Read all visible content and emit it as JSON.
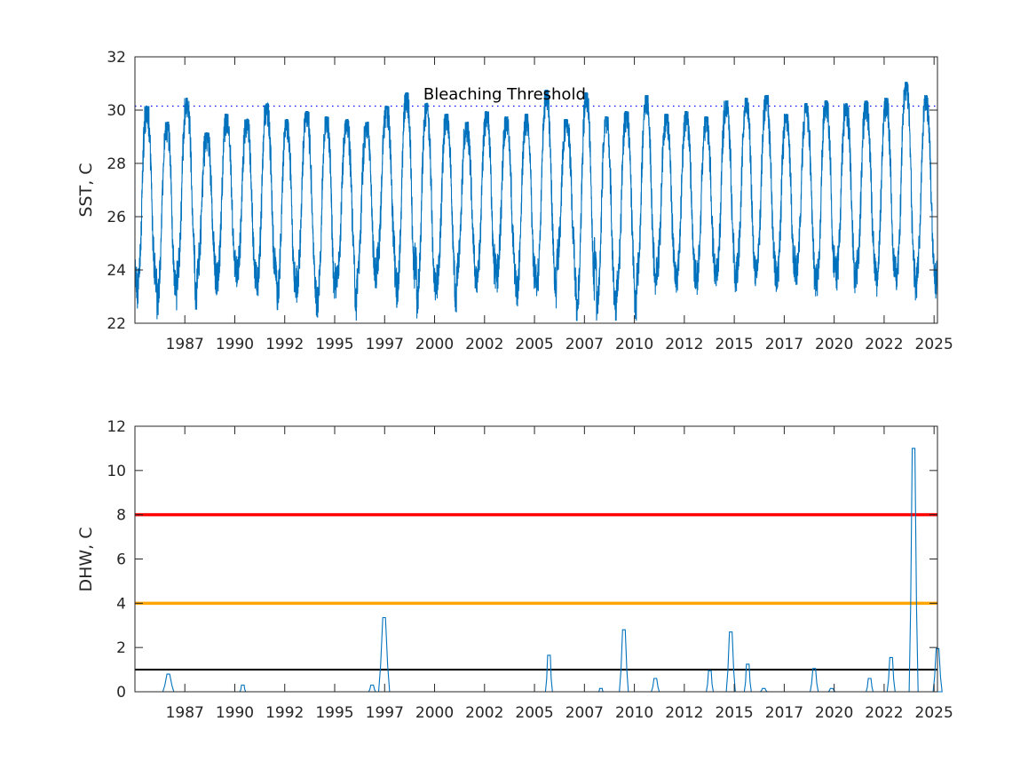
{
  "chart_data": [
    {
      "type": "line",
      "ylabel": "SST, C",
      "xlabel": "",
      "title": "",
      "xlim": [
        "1985-01-01",
        "2025-03-01"
      ],
      "ylim": [
        22,
        32
      ],
      "yticks": [
        22,
        24,
        26,
        28,
        30,
        32
      ],
      "xtick_labels": [
        "1987",
        "1990",
        "1992",
        "1995",
        "1997",
        "2000",
        "2002",
        "2005",
        "2007",
        "2010",
        "2012",
        "2015",
        "2017",
        "2020",
        "2022",
        "2025"
      ],
      "grid": false,
      "annotations": [
        {
          "text": "Bleaching Threshold",
          "x": "2003-07-01",
          "y": 30.6
        }
      ],
      "reference_lines": [
        {
          "y": 30.15,
          "style": "dotted",
          "color": "#0000ff"
        }
      ],
      "series": [
        {
          "color": "#0072bd",
          "description_peaks": {
            "x": [
              1985.6,
              1986.6,
              1987.6,
              1988.6,
              1989.6,
              1990.6,
              1991.6,
              1992.6,
              1993.6,
              1994.6,
              1995.6,
              1996.6,
              1997.6,
              1998.6,
              1999.6,
              2000.6,
              2001.6,
              2002.6,
              2003.6,
              2004.6,
              2005.6,
              2006.6,
              2007.6,
              2008.6,
              2009.6,
              2010.6,
              2011.6,
              2012.6,
              2013.6,
              2014.6,
              2015.6,
              2016.6,
              2017.6,
              2018.6,
              2019.6,
              2020.6,
              2021.6,
              2022.6,
              2023.6,
              2024.6
            ],
            "max": [
              30.1,
              29.5,
              30.4,
              29.1,
              29.8,
              29.6,
              30.2,
              29.6,
              29.9,
              29.7,
              29.6,
              29.5,
              30.1,
              30.6,
              30.2,
              29.8,
              29.5,
              29.9,
              29.7,
              29.8,
              30.7,
              29.6,
              30.6,
              29.7,
              29.9,
              30.5,
              29.8,
              29.9,
              29.7,
              30.3,
              30.4,
              30.5,
              29.8,
              30.2,
              30.3,
              30.2,
              30.3,
              30.4,
              31.0,
              30.5
            ],
            "min": [
              23.5,
              23.2,
              22.8,
              23.7,
              23.9,
              23.6,
              23.8,
              23.4,
              22.9,
              23.5,
              22.6,
              23.8,
              23.6,
              24.2,
              23.1,
              22.8,
              23.6,
              23.9,
              23.5,
              23.8,
              23.2,
              23.4,
              24.3,
              22.5,
              22.5,
              23.2,
              23.6,
              23.8,
              23.7,
              23.6,
              23.9,
              23.9,
              24.0,
              23.5,
              23.9,
              23.5,
              23.8,
              24.0,
              23.5,
              23.6
            ]
          }
        }
      ]
    },
    {
      "type": "line",
      "ylabel": "DHW, C",
      "xlabel": "",
      "title": "",
      "xlim": [
        "1985-01-01",
        "2025-03-01"
      ],
      "ylim": [
        0,
        12
      ],
      "yticks": [
        0,
        2,
        4,
        6,
        8,
        10,
        12
      ],
      "xtick_labels": [
        "1987",
        "1990",
        "1992",
        "1995",
        "1997",
        "2000",
        "2002",
        "2005",
        "2007",
        "2010",
        "2012",
        "2015",
        "2017",
        "2020",
        "2022",
        "2025"
      ],
      "grid": false,
      "reference_lines": [
        {
          "y": 8,
          "color": "#ff0000"
        },
        {
          "y": 4,
          "color": "#ffa500"
        },
        {
          "y": 1,
          "color": "#000000"
        }
      ],
      "series": [
        {
          "color": "#0072bd",
          "events": [
            {
              "start": 1987.3,
              "end": 1987.85,
              "peak": 0.8
            },
            {
              "start": 1991.15,
              "end": 1991.45,
              "peak": 0.3
            },
            {
              "start": 1997.6,
              "end": 1997.95,
              "peak": 0.3
            },
            {
              "start": 1998.1,
              "end": 1998.65,
              "peak": 3.35
            },
            {
              "start": 2006.45,
              "end": 2006.8,
              "peak": 1.65
            },
            {
              "start": 2009.1,
              "end": 2009.35,
              "peak": 0.15
            },
            {
              "start": 2010.15,
              "end": 2010.6,
              "peak": 2.8
            },
            {
              "start": 2011.75,
              "end": 2012.15,
              "peak": 0.6
            },
            {
              "start": 2014.5,
              "end": 2014.85,
              "peak": 0.95
            },
            {
              "start": 2015.5,
              "end": 2015.95,
              "peak": 2.7
            },
            {
              "start": 2016.4,
              "end": 2016.75,
              "peak": 1.25
            },
            {
              "start": 2017.2,
              "end": 2017.55,
              "peak": 0.15
            },
            {
              "start": 2019.7,
              "end": 2020.1,
              "peak": 1.05
            },
            {
              "start": 2020.6,
              "end": 2020.95,
              "peak": 0.15
            },
            {
              "start": 2022.5,
              "end": 2022.85,
              "peak": 0.6
            },
            {
              "start": 2023.55,
              "end": 2023.95,
              "peak": 1.55
            },
            {
              "start": 2024.65,
              "end": 2025.1,
              "peak": 11.0
            },
            {
              "start": 2025.85,
              "end": 2026.3,
              "peak": 1.95
            }
          ]
        }
      ]
    }
  ]
}
